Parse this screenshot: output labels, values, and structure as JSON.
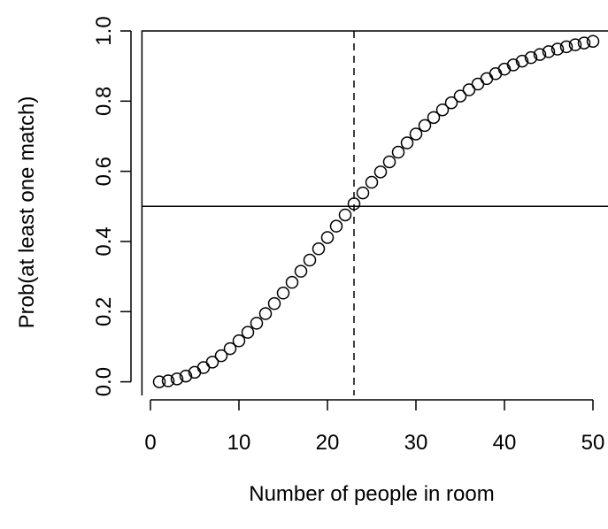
{
  "chart_data": {
    "type": "scatter",
    "xlabel": "Number of people in room",
    "ylabel": "Prob(at least one match)",
    "x": [
      1,
      2,
      3,
      4,
      5,
      6,
      7,
      8,
      9,
      10,
      11,
      12,
      13,
      14,
      15,
      16,
      17,
      18,
      19,
      20,
      21,
      22,
      23,
      24,
      25,
      26,
      27,
      28,
      29,
      30,
      31,
      32,
      33,
      34,
      35,
      36,
      37,
      38,
      39,
      40,
      41,
      42,
      43,
      44,
      45,
      46,
      47,
      48,
      49,
      50
    ],
    "values": [
      0,
      0.0027,
      0.0082,
      0.0164,
      0.0271,
      0.0405,
      0.0562,
      0.0743,
      0.0946,
      0.1169,
      0.1411,
      0.167,
      0.1944,
      0.2231,
      0.2529,
      0.2836,
      0.315,
      0.3469,
      0.3791,
      0.4114,
      0.4437,
      0.4757,
      0.5073,
      0.5383,
      0.5687,
      0.5982,
      0.6269,
      0.6545,
      0.681,
      0.7063,
      0.7305,
      0.7533,
      0.775,
      0.7953,
      0.8144,
      0.8322,
      0.8487,
      0.8641,
      0.8782,
      0.8912,
      0.9032,
      0.914,
      0.9239,
      0.9329,
      0.941,
      0.9483,
      0.9548,
      0.9606,
      0.9658,
      0.9704
    ],
    "color": "#000000",
    "xlim": [
      -0.96,
      51.96
    ],
    "ylim": [
      -0.0388,
      1.0
    ],
    "xticks": [
      0,
      10,
      20,
      30,
      40,
      50
    ],
    "yticks": [
      {
        "value": 0,
        "label": "0.0"
      },
      {
        "value": 0.2,
        "label": "0.2"
      },
      {
        "value": 0.4,
        "label": "0.4"
      },
      {
        "value": 0.6,
        "label": "0.6"
      },
      {
        "value": 0.8,
        "label": "0.8"
      },
      {
        "value": 1,
        "label": "1.0"
      }
    ],
    "hline": 0.5,
    "vline": 23
  }
}
